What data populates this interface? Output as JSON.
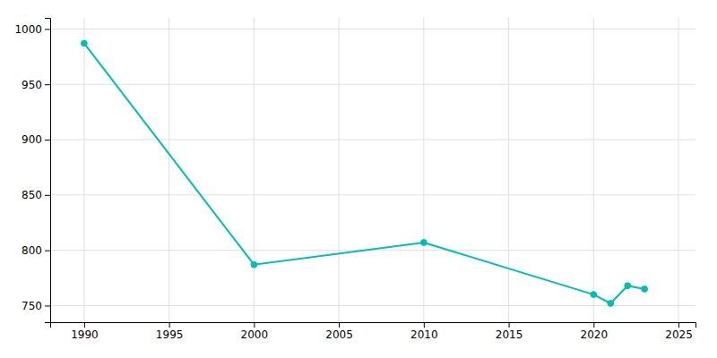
{
  "chart_data": {
    "type": "line",
    "x": [
      1990,
      2000,
      2010,
      2020,
      2021,
      2022,
      2023
    ],
    "values": [
      987,
      787,
      807,
      760,
      752,
      768,
      765
    ],
    "color": "#00bfb2",
    "marker": "circle",
    "xlim": [
      1988,
      2026
    ],
    "ylim": [
      735,
      1010
    ],
    "xticks": [
      1990,
      1995,
      2000,
      2005,
      2010,
      2015,
      2020,
      2025
    ],
    "yticks": [
      750,
      800,
      850,
      900,
      950,
      1000
    ],
    "grid": true
  }
}
